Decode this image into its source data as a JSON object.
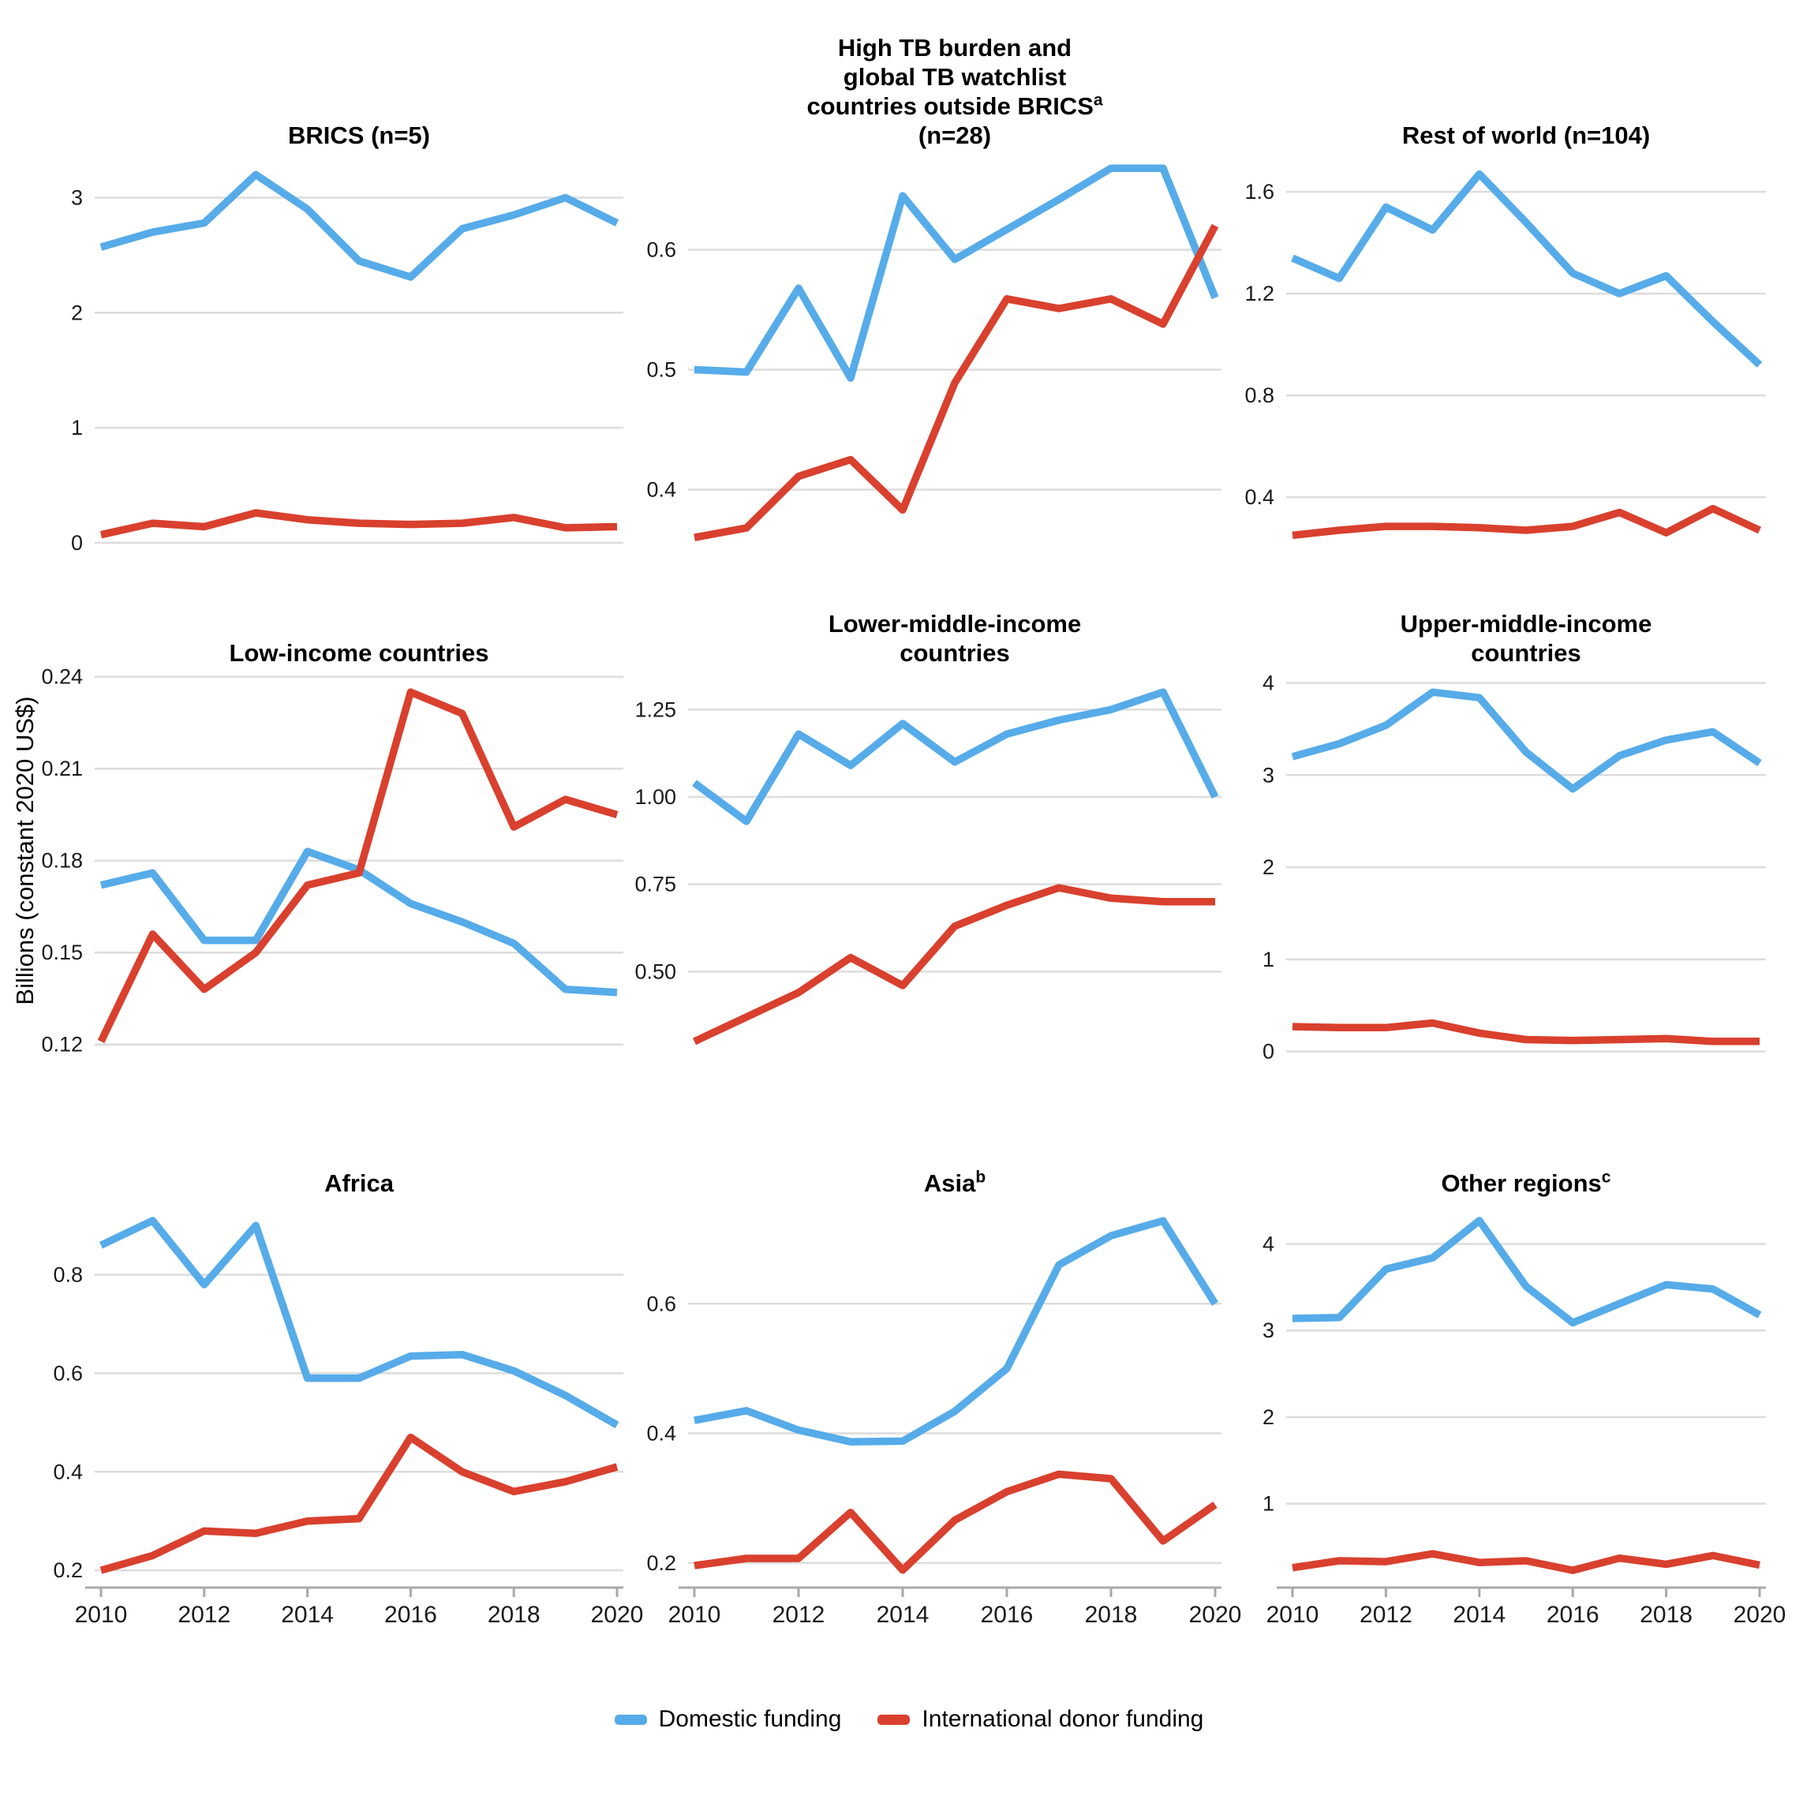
{
  "y_axis_label": "Billions (constant 2020 US$)",
  "legend": {
    "items": [
      {
        "label": "Domestic funding",
        "color": "#56ABE9"
      },
      {
        "label": "International donor funding",
        "color": "#D9402E"
      }
    ]
  },
  "colors": {
    "domestic_line": "#56ABE9",
    "donor_line": "#D9402E",
    "gridline": "#DCDCDC",
    "axis_line": "#A9A9A9",
    "tick_text": "#1A1A1A"
  },
  "x_axis": {
    "years": [
      2010,
      2011,
      2012,
      2013,
      2014,
      2015,
      2016,
      2017,
      2018,
      2019,
      2020
    ],
    "tick_labels": [
      "2010",
      "2012",
      "2014",
      "2016",
      "2018",
      "2020"
    ],
    "tick_values": [
      2010,
      2012,
      2014,
      2016,
      2018,
      2020
    ]
  },
  "chart_data": [
    {
      "id": "brics",
      "type": "line",
      "title_lines": [
        {
          "text": "BRICS (n=5)"
        }
      ],
      "ylim": [
        -0.09,
        3.36
      ],
      "yticks": [
        {
          "v": 0,
          "label": "0"
        },
        {
          "v": 1,
          "label": "1"
        },
        {
          "v": 2,
          "label": "2"
        },
        {
          "v": 3,
          "label": "3"
        }
      ],
      "show_x_axis": false,
      "series": [
        {
          "name": "Domestic funding",
          "values": [
            2.57,
            2.7,
            2.78,
            3.2,
            2.9,
            2.45,
            2.31,
            2.73,
            2.85,
            3.0,
            2.78
          ]
        },
        {
          "name": "International donor funding",
          "values": [
            0.07,
            0.17,
            0.14,
            0.26,
            0.2,
            0.17,
            0.16,
            0.17,
            0.22,
            0.13,
            0.14
          ]
        }
      ]
    },
    {
      "id": "hbc-outside-brics",
      "type": "line",
      "title_lines": [
        {
          "text": "High TB burden and"
        },
        {
          "text": "global TB watchlist"
        },
        {
          "text": "countries outside BRICS",
          "sup": "a"
        },
        {
          "text": "(n=28)"
        }
      ],
      "ylim": [
        0.347,
        0.678
      ],
      "yticks": [
        {
          "v": 0.4,
          "label": "0.4"
        },
        {
          "v": 0.5,
          "label": "0.5"
        },
        {
          "v": 0.6,
          "label": "0.6"
        }
      ],
      "show_x_axis": false,
      "series": [
        {
          "name": "Domestic funding",
          "values": [
            0.5,
            0.498,
            0.568,
            0.493,
            0.645,
            0.592,
            0.617,
            0.642,
            0.668,
            0.668,
            0.56
          ]
        },
        {
          "name": "International donor funding",
          "values": [
            0.36,
            0.368,
            0.411,
            0.425,
            0.383,
            0.489,
            0.559,
            0.551,
            0.559,
            0.538,
            0.62
          ]
        }
      ]
    },
    {
      "id": "rest-of-world",
      "type": "line",
      "title_lines": [
        {
          "text": "Rest of world (n=104)"
        }
      ],
      "ylim": [
        0.18,
        1.74
      ],
      "yticks": [
        {
          "v": 0.4,
          "label": "0.4"
        },
        {
          "v": 0.8,
          "label": "0.8"
        },
        {
          "v": 1.2,
          "label": "1.2"
        },
        {
          "v": 1.6,
          "label": "1.6"
        }
      ],
      "show_x_axis": false,
      "series": [
        {
          "name": "Domestic funding",
          "values": [
            1.34,
            1.26,
            1.54,
            1.45,
            1.67,
            1.48,
            1.28,
            1.2,
            1.27,
            1.09,
            0.92
          ]
        },
        {
          "name": "International donor funding",
          "values": [
            0.25,
            0.27,
            0.285,
            0.285,
            0.28,
            0.27,
            0.285,
            0.34,
            0.26,
            0.355,
            0.27
          ]
        }
      ]
    },
    {
      "id": "low-income",
      "type": "line",
      "title_lines": [
        {
          "text": "Low-income countries"
        }
      ],
      "ylim": [
        0.1153,
        0.2407
      ],
      "yticks": [
        {
          "v": 0.12,
          "label": "0.12"
        },
        {
          "v": 0.15,
          "label": "0.15"
        },
        {
          "v": 0.18,
          "label": "0.18"
        },
        {
          "v": 0.21,
          "label": "0.21"
        },
        {
          "v": 0.24,
          "label": "0.24"
        }
      ],
      "show_x_axis": false,
      "series": [
        {
          "name": "Domestic funding",
          "values": [
            0.172,
            0.176,
            0.154,
            0.154,
            0.183,
            0.177,
            0.166,
            0.16,
            0.153,
            0.138,
            0.137
          ]
        },
        {
          "name": "International donor funding",
          "values": [
            0.121,
            0.156,
            0.138,
            0.15,
            0.172,
            0.176,
            0.235,
            0.228,
            0.191,
            0.2,
            0.195
          ]
        }
      ]
    },
    {
      "id": "lower-middle-income",
      "type": "line",
      "title_lines": [
        {
          "text": "Lower-middle-income"
        },
        {
          "text": "countries"
        }
      ],
      "ylim": [
        0.25,
        1.35
      ],
      "yticks": [
        {
          "v": 0.5,
          "label": "0.50"
        },
        {
          "v": 0.75,
          "label": "0.75"
        },
        {
          "v": 1.0,
          "label": "1.00"
        },
        {
          "v": 1.25,
          "label": "1.25"
        }
      ],
      "show_x_axis": false,
      "series": [
        {
          "name": "Domestic funding",
          "values": [
            1.04,
            0.93,
            1.18,
            1.09,
            1.21,
            1.1,
            1.18,
            1.22,
            1.25,
            1.3,
            1.0
          ]
        },
        {
          "name": "International donor funding",
          "values": [
            0.3,
            0.37,
            0.44,
            0.54,
            0.46,
            0.63,
            0.69,
            0.74,
            0.71,
            0.7,
            0.7
          ]
        }
      ]
    },
    {
      "id": "upper-middle-income",
      "type": "line",
      "title_lines": [
        {
          "text": "Upper-middle-income"
        },
        {
          "text": "countries"
        }
      ],
      "ylim": [
        -0.08,
        4.09
      ],
      "yticks": [
        {
          "v": 0,
          "label": "0"
        },
        {
          "v": 1,
          "label": "1"
        },
        {
          "v": 2,
          "label": "2"
        },
        {
          "v": 3,
          "label": "3"
        },
        {
          "v": 4,
          "label": "4"
        }
      ],
      "show_x_axis": false,
      "series": [
        {
          "name": "Domestic funding",
          "values": [
            3.2,
            3.34,
            3.54,
            3.9,
            3.84,
            3.25,
            2.85,
            3.21,
            3.38,
            3.47,
            3.13
          ]
        },
        {
          "name": "International donor funding",
          "values": [
            0.27,
            0.26,
            0.26,
            0.31,
            0.2,
            0.13,
            0.12,
            0.13,
            0.14,
            0.11,
            0.11
          ]
        }
      ]
    },
    {
      "id": "africa",
      "type": "line",
      "title_lines": [
        {
          "text": "Africa"
        }
      ],
      "ylim": [
        0.165,
        0.945
      ],
      "yticks": [
        {
          "v": 0.2,
          "label": "0.2"
        },
        {
          "v": 0.4,
          "label": "0.4"
        },
        {
          "v": 0.6,
          "label": "0.6"
        },
        {
          "v": 0.8,
          "label": "0.8"
        }
      ],
      "show_x_axis": true,
      "series": [
        {
          "name": "Domestic funding",
          "values": [
            0.86,
            0.91,
            0.78,
            0.9,
            0.59,
            0.59,
            0.635,
            0.638,
            0.605,
            0.555,
            0.495
          ]
        },
        {
          "name": "International donor funding",
          "values": [
            0.2,
            0.23,
            0.28,
            0.275,
            0.3,
            0.305,
            0.47,
            0.4,
            0.36,
            0.38,
            0.41
          ]
        }
      ]
    },
    {
      "id": "asia",
      "type": "line",
      "title_lines": [
        {
          "text": "Asia",
          "sup": "b"
        }
      ],
      "ylim": [
        0.162,
        0.755
      ],
      "yticks": [
        {
          "v": 0.2,
          "label": "0.2"
        },
        {
          "v": 0.4,
          "label": "0.4"
        },
        {
          "v": 0.6,
          "label": "0.6"
        }
      ],
      "show_x_axis": true,
      "series": [
        {
          "name": "Domestic funding",
          "values": [
            0.42,
            0.435,
            0.405,
            0.387,
            0.388,
            0.434,
            0.5,
            0.66,
            0.705,
            0.728,
            0.6
          ]
        },
        {
          "name": "International donor funding",
          "values": [
            0.196,
            0.207,
            0.207,
            0.278,
            0.189,
            0.266,
            0.31,
            0.337,
            0.33,
            0.234,
            0.29
          ]
        }
      ]
    },
    {
      "id": "other-regions",
      "type": "line",
      "title_lines": [
        {
          "text": "Other regions",
          "sup": "c"
        }
      ],
      "ylim": [
        0.03,
        4.47
      ],
      "yticks": [
        {
          "v": 1,
          "label": "1"
        },
        {
          "v": 2,
          "label": "2"
        },
        {
          "v": 3,
          "label": "3"
        },
        {
          "v": 4,
          "label": "4"
        }
      ],
      "show_x_axis": true,
      "series": [
        {
          "name": "Domestic funding",
          "values": [
            3.14,
            3.15,
            3.71,
            3.84,
            4.27,
            3.51,
            3.09,
            3.31,
            3.53,
            3.48,
            3.18
          ]
        },
        {
          "name": "International donor funding",
          "values": [
            0.26,
            0.34,
            0.33,
            0.42,
            0.32,
            0.34,
            0.23,
            0.37,
            0.3,
            0.4,
            0.29
          ]
        }
      ]
    }
  ]
}
